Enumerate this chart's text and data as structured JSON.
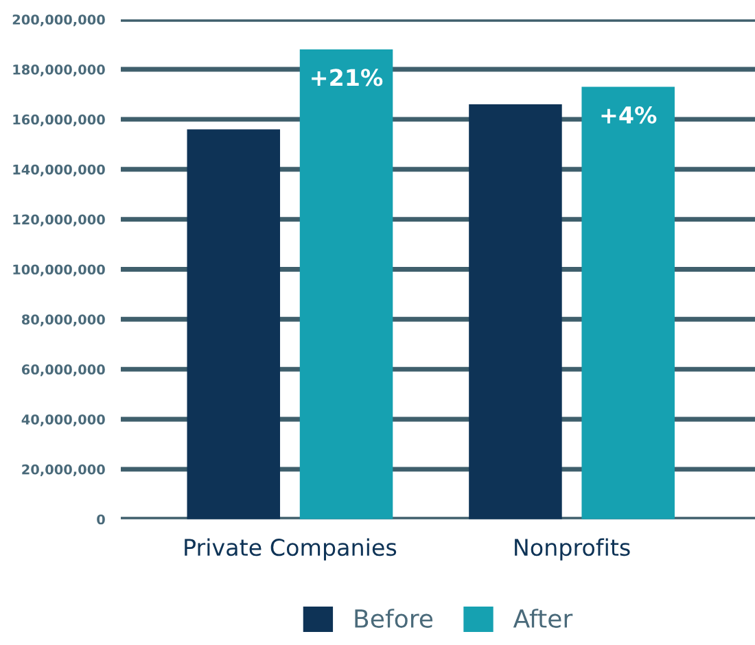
{
  "chart_data": {
    "type": "bar",
    "categories": [
      "Private Companies",
      "Nonprofits"
    ],
    "series": [
      {
        "name": "Before",
        "color": "#0e3356",
        "values": [
          156000000,
          166000000
        ]
      },
      {
        "name": "After",
        "color": "#16a1b1",
        "values": [
          188000000,
          173000000
        ]
      }
    ],
    "ylim": [
      0,
      200000000
    ],
    "yticks": [
      {
        "value": 0,
        "label": "0"
      },
      {
        "value": 20000000,
        "label": "20,000,000"
      },
      {
        "value": 40000000,
        "label": "40,000,000"
      },
      {
        "value": 60000000,
        "label": "60,000,000"
      },
      {
        "value": 80000000,
        "label": "80,000,000"
      },
      {
        "value": 100000000,
        "label": "100,000,000"
      },
      {
        "value": 120000000,
        "label": "120,000,000"
      },
      {
        "value": 140000000,
        "label": "140,000,000"
      },
      {
        "value": 160000000,
        "label": "160,000,000"
      },
      {
        "value": 180000000,
        "label": "180,000,000"
      },
      {
        "value": 200000000,
        "label": "200,000,000"
      }
    ],
    "annotations": [
      "+21%",
      "+4%"
    ],
    "grid": "y",
    "legend": "bottom"
  }
}
